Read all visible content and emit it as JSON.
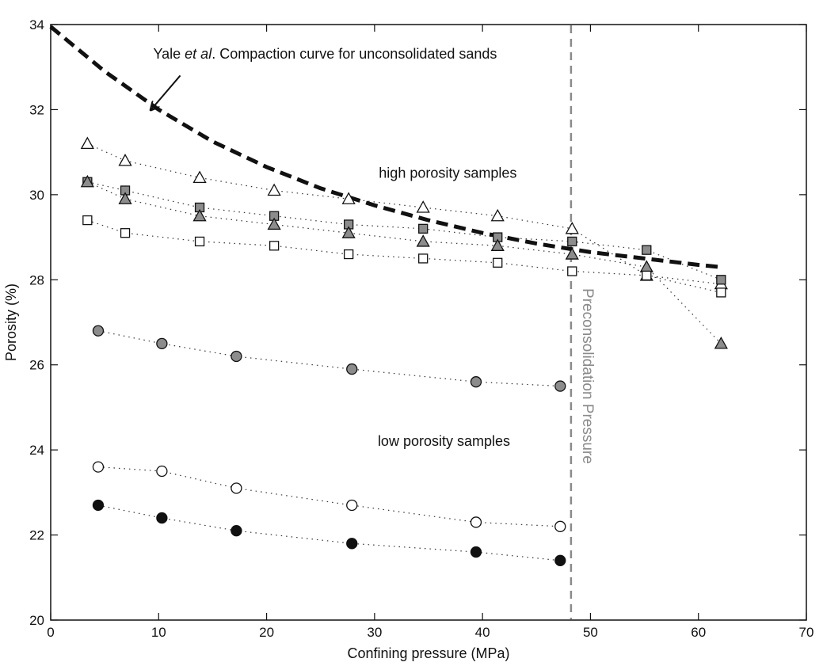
{
  "chart_data": {
    "type": "scatter",
    "xlabel": "Confining pressure (MPa)",
    "ylabel": "Porosity (%)",
    "xlim": [
      0,
      70
    ],
    "ylim": [
      20,
      34
    ],
    "x_ticks": [
      "0",
      "10",
      "20",
      "30",
      "40",
      "50",
      "60",
      "70"
    ],
    "y_ticks": [
      "20",
      "22",
      "24",
      "26",
      "28",
      "30",
      "32",
      "34"
    ],
    "grid": false,
    "legend": "none",
    "series": [
      {
        "marker": "triangle-open",
        "fill": "#ffffff",
        "x": [
          3.4,
          6.9,
          13.8,
          20.7,
          27.6,
          34.5,
          41.4,
          48.3,
          55.2,
          62.1
        ],
        "y": [
          31.2,
          30.8,
          30.4,
          30.1,
          29.9,
          29.7,
          29.5,
          29.2,
          28.1,
          27.9
        ]
      },
      {
        "marker": "square-filled",
        "fill": "#8c8c8c",
        "x": [
          3.4,
          6.9,
          13.8,
          20.7,
          27.6,
          34.5,
          41.4,
          48.3,
          55.2,
          62.1
        ],
        "y": [
          30.3,
          30.1,
          29.7,
          29.5,
          29.3,
          29.2,
          29.0,
          28.9,
          28.7,
          28.0
        ]
      },
      {
        "marker": "triangle-filled",
        "fill": "#8c8c8c",
        "x": [
          3.4,
          6.9,
          13.8,
          20.7,
          27.6,
          34.5,
          41.4,
          48.3,
          55.2,
          62.1
        ],
        "y": [
          30.3,
          29.9,
          29.5,
          29.3,
          29.1,
          28.9,
          28.8,
          28.6,
          28.3,
          26.5
        ]
      },
      {
        "marker": "square-open",
        "fill": "#ffffff",
        "x": [
          3.4,
          6.9,
          13.8,
          20.7,
          27.6,
          34.5,
          41.4,
          48.3,
          55.2,
          62.1
        ],
        "y": [
          29.4,
          29.1,
          28.9,
          28.8,
          28.6,
          28.5,
          28.4,
          28.2,
          28.1,
          27.7
        ]
      },
      {
        "marker": "circle-filled",
        "fill": "#8c8c8c",
        "x": [
          4.4,
          10.3,
          17.2,
          27.9,
          39.4,
          47.2
        ],
        "y": [
          26.8,
          26.5,
          26.2,
          25.9,
          25.6,
          25.5
        ]
      },
      {
        "marker": "circle-open",
        "fill": "#ffffff",
        "x": [
          4.4,
          10.3,
          17.2,
          27.9,
          39.4,
          47.2
        ],
        "y": [
          23.6,
          23.5,
          23.1,
          22.7,
          22.3,
          22.2
        ]
      },
      {
        "marker": "circle-filled",
        "fill": "#111111",
        "x": [
          4.4,
          10.3,
          17.2,
          27.9,
          39.4,
          47.2
        ],
        "y": [
          22.7,
          22.4,
          22.1,
          21.8,
          21.6,
          21.4
        ]
      }
    ],
    "compaction_curve": {
      "style": "dashed-thick",
      "color": "#111111",
      "x": [
        0,
        5,
        10,
        15,
        20,
        25,
        30,
        35,
        40,
        45,
        50,
        55,
        60,
        62
      ],
      "y": [
        33.95,
        32.9,
        32.0,
        31.25,
        30.65,
        30.15,
        29.75,
        29.4,
        29.1,
        28.85,
        28.65,
        28.5,
        28.35,
        28.3
      ]
    },
    "preconsolidation_line": {
      "x": 48.2,
      "color": "#8a8a8a",
      "style": "dashed"
    },
    "annotations": {
      "compaction_label_pre": "Yale ",
      "compaction_label_em": "et al",
      "compaction_label_post": ". Compaction curve for unconsolidated sands",
      "high_porosity": "high porosity samples",
      "low_porosity": "low porosity samples",
      "preconsolidation": "Preconsolidation Pressure"
    },
    "annotation_anchors": {
      "compaction_label": [
        9.5,
        33.2
      ],
      "compaction_arrow_from": [
        12.0,
        32.8
      ],
      "compaction_arrow_to": [
        9.3,
        32.0
      ],
      "high_porosity": [
        30.4,
        30.4
      ],
      "low_porosity": [
        30.3,
        24.1
      ],
      "preconsolidation": [
        49.3,
        27.8
      ]
    }
  }
}
